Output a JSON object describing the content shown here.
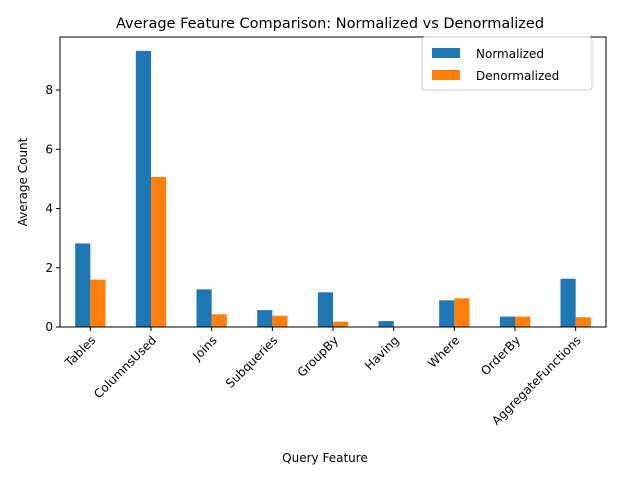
{
  "chart_data": {
    "type": "bar",
    "title": "Average Feature Comparison: Normalized vs Denormalized",
    "xlabel": "Query Feature",
    "ylabel": "Average Count",
    "categories": [
      "Tables",
      "ColumnsUsed",
      "Joins",
      "Subqueries",
      "GroupBy",
      "Having",
      "Where",
      "OrderBy",
      "AggregateFunctions"
    ],
    "series": [
      {
        "name": "Normalized",
        "color": "#1f77b4",
        "values": [
          2.82,
          9.32,
          1.27,
          0.57,
          1.17,
          0.2,
          0.9,
          0.35,
          1.63
        ]
      },
      {
        "name": "Denormalized",
        "color": "#ff7f0e",
        "values": [
          1.6,
          5.07,
          0.43,
          0.38,
          0.18,
          0.0,
          0.97,
          0.35,
          0.33
        ]
      }
    ],
    "ylim": [
      0,
      9.79
    ],
    "yticks": [
      0,
      2,
      4,
      6,
      8
    ],
    "legend": "top-right",
    "grid": false
  }
}
